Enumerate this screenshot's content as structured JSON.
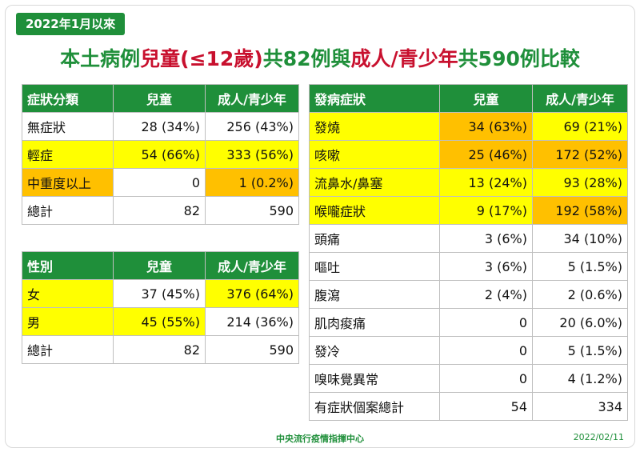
{
  "badge": "2022年1月以來",
  "title": {
    "p1": "本土病例",
    "p2": "兒童(≤12歲)",
    "p3": "共82例與",
    "p4": "成人/青少年",
    "p5": "共590例比較"
  },
  "table1": {
    "headers": [
      "症狀分類",
      "兒童",
      "成人/青少年"
    ],
    "rows": [
      [
        "無症狀",
        "28 (34%)",
        "256 (43%)"
      ],
      [
        "輕症",
        "54 (66%)",
        "333 (56%)"
      ],
      [
        "中重度以上",
        "0",
        "1 (0.2%)"
      ],
      [
        "總計",
        "82",
        "590"
      ]
    ]
  },
  "table2": {
    "headers": [
      "性別",
      "兒童",
      "成人/青少年"
    ],
    "rows": [
      [
        "女",
        "37 (45%)",
        "376 (64%)"
      ],
      [
        "男",
        "45 (55%)",
        "214 (36%)"
      ],
      [
        "總計",
        "82",
        "590"
      ]
    ]
  },
  "table3": {
    "headers": [
      "發病症狀",
      "兒童",
      "成人/青少年"
    ],
    "rows": [
      [
        "發燒",
        "34 (63%)",
        "69 (21%)"
      ],
      [
        "咳嗽",
        "25 (46%)",
        "172 (52%)"
      ],
      [
        "流鼻水/鼻塞",
        "13 (24%)",
        "93 (28%)"
      ],
      [
        "喉嚨症狀",
        "9 (17%)",
        "192 (58%)"
      ],
      [
        "頭痛",
        "3 (6%)",
        "34 (10%)"
      ],
      [
        "嘔吐",
        "3 (6%)",
        "5 (1.5%)"
      ],
      [
        "腹瀉",
        "2 (4%)",
        "2 (0.6%)"
      ],
      [
        "肌肉痠痛",
        "0",
        "20 (6.0%)"
      ],
      [
        "發冷",
        "0",
        "5 (1.5%)"
      ],
      [
        "嗅味覺異常",
        "0",
        "4 (1.2%)"
      ],
      [
        "有症狀個案總計",
        "54",
        "334"
      ]
    ]
  },
  "footer": {
    "org": "中央流行疫情指揮中心",
    "date": "2022/02/11"
  },
  "colors": {
    "green": "#1f8f3a",
    "red": "#c8102e",
    "yellow": "#ffff00",
    "orange": "#ffc000"
  }
}
